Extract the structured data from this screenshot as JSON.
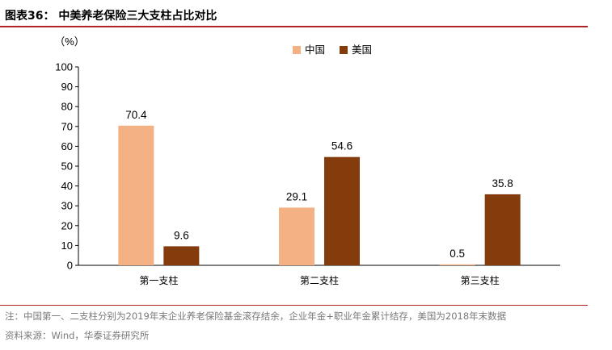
{
  "figure": {
    "title": "图表36：  中美养老保险三大支柱占比对比",
    "note": "注：中国第一、二支柱分别为2019年末企业养老保险基金滚存结余，企业年金+职业年金累计结存，美国为2018年末数据",
    "source": "资料来源：Wind，华泰证券研究所"
  },
  "chart_data": {
    "type": "bar",
    "ylabel": "（%）",
    "ylim": [
      0,
      100
    ],
    "yticks": [
      0,
      10,
      20,
      30,
      40,
      50,
      60,
      70,
      80,
      90,
      100
    ],
    "categories": [
      "第一支柱",
      "第二支柱",
      "第三支柱"
    ],
    "series": [
      {
        "name": "中国",
        "color": "#f4b183",
        "values": [
          70.4,
          29.1,
          0.5
        ]
      },
      {
        "name": "美国",
        "color": "#843c0c",
        "values": [
          9.6,
          54.6,
          35.8
        ]
      }
    ],
    "legend_position": "top-center",
    "grid": false
  }
}
